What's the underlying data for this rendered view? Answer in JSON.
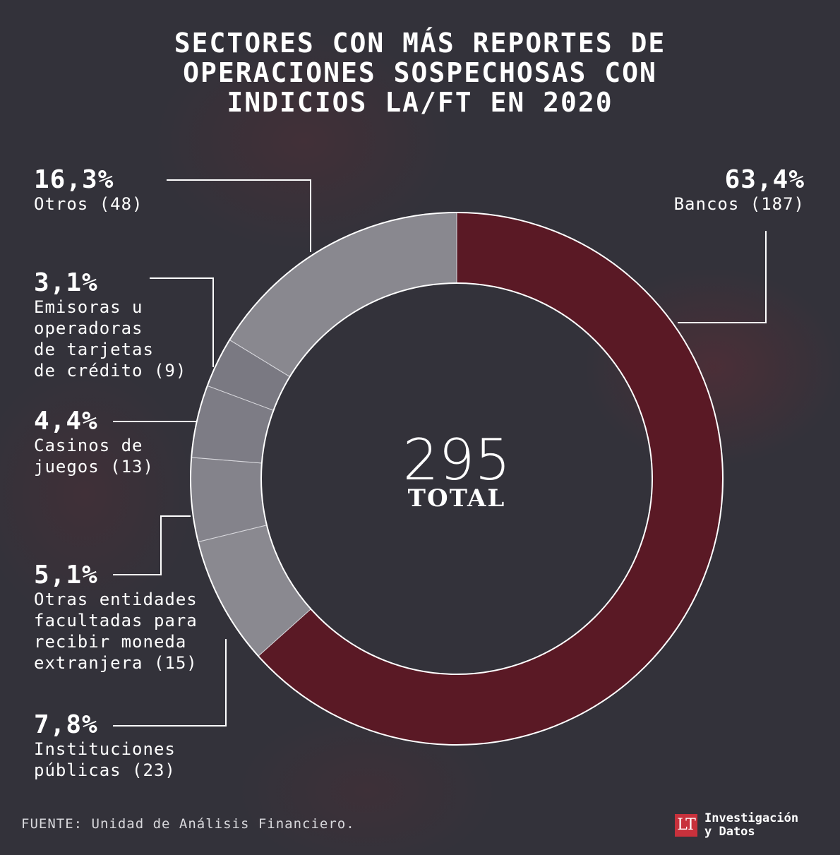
{
  "title": {
    "line1": "SECTORES CON MÁS REPORTES DE",
    "line2": "OPERACIONES SOSPECHOSAS CON",
    "line3": "INDICIOS LA/FT EN 2020"
  },
  "center": {
    "value": "295",
    "label": "TOTAL"
  },
  "source": "FUENTE: Unidad de Análisis Financiero.",
  "logo": {
    "mark": "LT",
    "line1": "Investigación",
    "line2": "y Datos"
  },
  "colors": {
    "background": "#33323a",
    "accent": "#5a1925",
    "gray": "#85848c",
    "line": "#ffffff"
  },
  "chart_data": {
    "type": "pie",
    "variant": "donut",
    "total": 295,
    "categories": [
      "Bancos",
      "Instituciones públicas",
      "Otras entidades facultadas para recibir moneda extranjera",
      "Casinos de juegos",
      "Emisoras u operadoras de tarjetas de crédito",
      "Otros"
    ],
    "values": [
      187,
      23,
      15,
      13,
      9,
      48
    ],
    "percent_labels": [
      "63,4%",
      "7,8%",
      "5,1%",
      "4,4%",
      "3,1%",
      "16,3%"
    ],
    "desc_labels": [
      "Bancos (187)",
      "Instituciones\npúblicas (23)",
      "Otras entidades\nfacultadas para\nrecibir moneda\nextranjera (15)",
      "Casinos de\njuegos (13)",
      "Emisoras u\noperadoras\nde tarjetas\nde crédito (9)",
      "Otros (48)"
    ],
    "slice_colors": [
      "#5a1925",
      "#8a8990",
      "#84838b",
      "#7d7c85",
      "#7a7982",
      "#89888f"
    ],
    "start_angle_deg": 0,
    "direction": "clockwise"
  }
}
